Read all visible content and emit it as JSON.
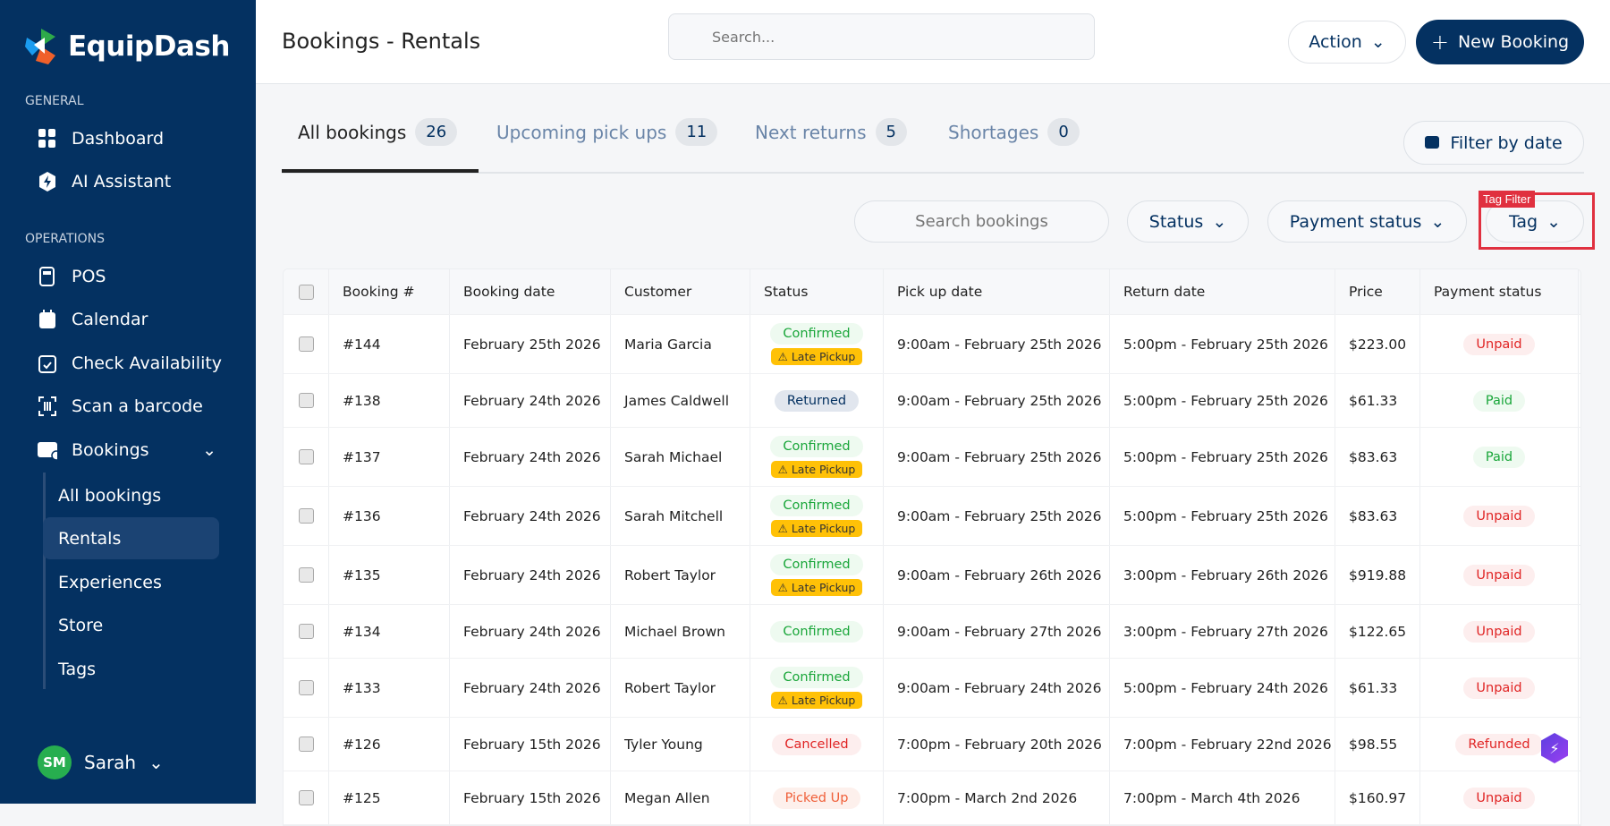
{
  "app": {
    "name": "EquipDash"
  },
  "sidebar": {
    "general_label": "GENERAL",
    "operations_label": "OPERATIONS",
    "general": [
      {
        "label": "Dashboard",
        "icon": "grid-icon"
      },
      {
        "label": "AI Assistant",
        "icon": "ai-bolt-icon"
      }
    ],
    "operations": [
      {
        "label": "POS",
        "icon": "pos-terminal-icon"
      },
      {
        "label": "Calendar",
        "icon": "calendar-icon"
      },
      {
        "label": "Check Availability",
        "icon": "calendar-check-icon"
      },
      {
        "label": "Scan a barcode",
        "icon": "barcode-scan-icon"
      },
      {
        "label": "Bookings",
        "icon": "bookings-icon"
      }
    ],
    "bookings_sub": [
      {
        "label": "All bookings"
      },
      {
        "label": "Rentals",
        "active": true
      },
      {
        "label": "Experiences"
      },
      {
        "label": "Store"
      },
      {
        "label": "Tags"
      }
    ],
    "user": {
      "initials": "SM",
      "name": "Sarah"
    }
  },
  "header": {
    "title": "Bookings - Rentals",
    "search_placeholder": "Search...",
    "action_label": "Action",
    "new_booking_label": "New Booking"
  },
  "tabs": [
    {
      "label": "All bookings",
      "count": "26",
      "active": true
    },
    {
      "label": "Upcoming pick ups",
      "count": "11"
    },
    {
      "label": "Next returns",
      "count": "5"
    },
    {
      "label": "Shortages",
      "count": "0"
    }
  ],
  "filters": {
    "date_label": "Filter by date",
    "search_placeholder": "Search bookings",
    "status_label": "Status",
    "payment_label": "Payment status",
    "tag_label": "Tag",
    "highlight_label": "Tag Filter"
  },
  "colors": {
    "sidebar": "#043161",
    "confirmed": "#1aa63a",
    "returned": "#043161",
    "cancelled": "#e02424",
    "picked_up": "#f0603a",
    "late": "#ffc107",
    "unpaid": "#e02424",
    "paid": "#1aa63a"
  },
  "table": {
    "columns": [
      "",
      "Booking #",
      "Booking date",
      "Customer",
      "Status",
      "Pick up date",
      "Return date",
      "Price",
      "Payment status"
    ],
    "rows": [
      {
        "id": "#144",
        "date": "February 25th 2026",
        "customer": "Maria Garcia",
        "status": "Confirmed",
        "late": "⚠ Late Pickup",
        "pickup": "9:00am - February 25th 2026",
        "return": "5:00pm - February 25th 2026",
        "price": "$223.00",
        "payment": "Unpaid"
      },
      {
        "id": "#138",
        "date": "February 24th 2026",
        "customer": "James Caldwell",
        "status": "Returned",
        "pickup": "9:00am - February 25th 2026",
        "return": "5:00pm - February 25th 2026",
        "price": "$61.33",
        "payment": "Paid"
      },
      {
        "id": "#137",
        "date": "February 24th 2026",
        "customer": "Sarah Michael",
        "status": "Confirmed",
        "late": "⚠ Late Pickup",
        "pickup": "9:00am - February 25th 2026",
        "return": "5:00pm - February 25th 2026",
        "price": "$83.63",
        "payment": "Paid"
      },
      {
        "id": "#136",
        "date": "February 24th 2026",
        "customer": "Sarah Mitchell",
        "status": "Confirmed",
        "late": "⚠ Late Pickup",
        "pickup": "9:00am - February 25th 2026",
        "return": "5:00pm - February 25th 2026",
        "price": "$83.63",
        "payment": "Unpaid"
      },
      {
        "id": "#135",
        "date": "February 24th 2026",
        "customer": "Robert Taylor",
        "status": "Confirmed",
        "late": "⚠ Late Pickup",
        "pickup": "9:00am - February 26th 2026",
        "return": "3:00pm - February 26th 2026",
        "price": "$919.88",
        "payment": "Unpaid"
      },
      {
        "id": "#134",
        "date": "February 24th 2026",
        "customer": "Michael Brown",
        "status": "Confirmed",
        "pickup": "9:00am - February 27th 2026",
        "return": "3:00pm - February 27th 2026",
        "price": "$122.65",
        "payment": "Unpaid"
      },
      {
        "id": "#133",
        "date": "February 24th 2026",
        "customer": "Robert Taylor",
        "status": "Confirmed",
        "late": "⚠ Late Pickup",
        "pickup": "9:00am - February 24th 2026",
        "return": "5:00pm - February 24th 2026",
        "price": "$61.33",
        "payment": "Unpaid"
      },
      {
        "id": "#126",
        "date": "February 15th 2026",
        "customer": "Tyler Young",
        "status": "Cancelled",
        "pickup": "7:00pm - February 20th 2026",
        "return": "7:00pm - February 22nd 2026",
        "price": "$98.55",
        "payment": "Refunded"
      },
      {
        "id": "#125",
        "date": "February 15th 2026",
        "customer": "Megan Allen",
        "status": "Picked Up",
        "pickup": "7:00pm - March 2nd 2026",
        "return": "7:00pm - March 4th 2026",
        "price": "$160.97",
        "payment": "Unpaid"
      }
    ]
  }
}
